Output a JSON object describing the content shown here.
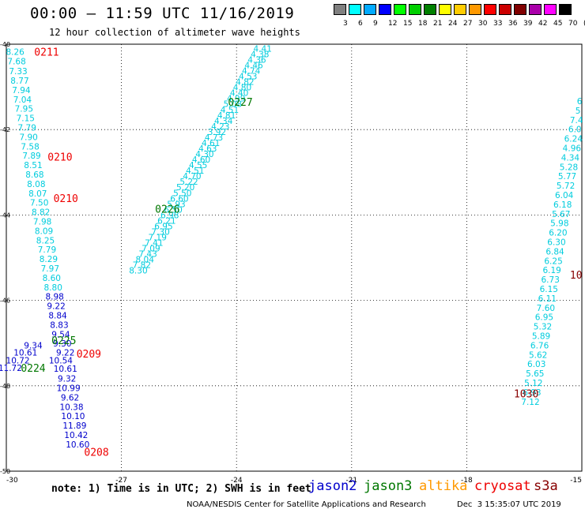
{
  "header": {
    "title": "00:00 – 11:59 UTC 11/16/2019",
    "subtitle": "12 hour collection of altimeter wave heights"
  },
  "color_scale": {
    "labels": [
      "3",
      "6",
      "9",
      "12",
      "15",
      "18",
      "21",
      "24",
      "27",
      "30",
      "33",
      "36",
      "39",
      "42",
      "45",
      "70",
      "(ft)"
    ],
    "colors": [
      "#808080",
      "#00ffff",
      "#00aaff",
      "#0000ff",
      "#00ff00",
      "#00d000",
      "#008000",
      "#ffff00",
      "#ffcc00",
      "#ff9900",
      "#ff0000",
      "#cc0000",
      "#800000",
      "#aa00aa",
      "#ff00ff",
      "#000000"
    ]
  },
  "footer": {
    "note": "note: 1) Time is in UTC; 2) SWH is in feet",
    "satellites": [
      {
        "name": "jason2",
        "color": "#0000cc"
      },
      {
        "name": "jason3",
        "color": "#007700"
      },
      {
        "name": "altika",
        "color": "#ff9900"
      },
      {
        "name": "cryosat",
        "color": "#ee0000"
      },
      {
        "name": "s3a",
        "color": "#880000"
      }
    ],
    "credit": "NOAA/NESDIS Center for Satellite Applications and Research",
    "date": "Dec  3 15:35:07 UTC 2019"
  },
  "chart_data": {
    "type": "scatter",
    "title": "00:00 – 11:59 UTC 11/16/2019",
    "subtitle": "12 hour collection of altimeter wave heights",
    "xlabel": "",
    "ylabel": "",
    "xlim": [
      -30,
      -15
    ],
    "ylim": [
      -50,
      -40
    ],
    "grid": true,
    "x_ticks": [
      "-30",
      "-27",
      "-24",
      "-21",
      "-18",
      "-15"
    ],
    "y_ticks": [
      "-40",
      "-42",
      "-44",
      "-46",
      "-48",
      "-50"
    ],
    "series": [
      {
        "name": "cryosat",
        "color": "#00ccdd",
        "points": [
          {
            "x": -29.77,
            "y": -40.18,
            "v": "8.26"
          },
          {
            "x": -29.73,
            "y": -40.4,
            "v": "7.68"
          },
          {
            "x": -29.69,
            "y": -40.63,
            "v": "7.33"
          },
          {
            "x": -29.65,
            "y": -40.85,
            "v": "8.77"
          },
          {
            "x": -29.61,
            "y": -41.07,
            "v": "7.94"
          },
          {
            "x": -29.58,
            "y": -41.29,
            "v": "7.04"
          },
          {
            "x": -29.54,
            "y": -41.51,
            "v": "7.95"
          },
          {
            "x": -29.5,
            "y": -41.73,
            "v": "7.15"
          },
          {
            "x": -29.46,
            "y": -41.95,
            "v": "7.79"
          },
          {
            "x": -29.42,
            "y": -42.17,
            "v": "7.90"
          },
          {
            "x": -29.38,
            "y": -42.39,
            "v": "7.58"
          },
          {
            "x": -29.34,
            "y": -42.61,
            "v": "7.89"
          },
          {
            "x": -29.3,
            "y": -42.83,
            "v": "8.51"
          },
          {
            "x": -29.26,
            "y": -43.05,
            "v": "8.68"
          },
          {
            "x": -29.22,
            "y": -43.27,
            "v": "8.08"
          },
          {
            "x": -29.18,
            "y": -43.49,
            "v": "8.07"
          },
          {
            "x": -29.14,
            "y": -43.71,
            "v": "7.50"
          },
          {
            "x": -29.1,
            "y": -43.93,
            "v": "8.82"
          },
          {
            "x": -29.06,
            "y": -44.15,
            "v": "7.98"
          },
          {
            "x": -29.02,
            "y": -44.37,
            "v": "8.09"
          },
          {
            "x": -28.98,
            "y": -44.59,
            "v": "8.25"
          },
          {
            "x": -28.94,
            "y": -44.81,
            "v": "7.79"
          },
          {
            "x": -28.9,
            "y": -45.03,
            "v": "8.29"
          },
          {
            "x": -28.86,
            "y": -45.25,
            "v": "7.97"
          },
          {
            "x": -28.82,
            "y": -45.47,
            "v": "8.60"
          },
          {
            "x": -28.78,
            "y": -45.69,
            "v": "8.80"
          }
        ]
      },
      {
        "name": "jason2",
        "color": "#0000cc",
        "points": [
          {
            "x": -28.74,
            "y": -45.91,
            "v": "8.98"
          },
          {
            "x": -28.7,
            "y": -46.13,
            "v": "9.22"
          },
          {
            "x": -28.66,
            "y": -46.35,
            "v": "8.84"
          },
          {
            "x": -28.62,
            "y": -46.57,
            "v": "8.83"
          },
          {
            "x": -28.58,
            "y": -46.79,
            "v": "9.54"
          },
          {
            "x": -28.54,
            "y": -47.01,
            "v": "9.30"
          },
          {
            "x": -28.46,
            "y": -47.22,
            "v": "9.22"
          },
          {
            "x": -28.58,
            "y": -47.4,
            "v": "10.54"
          },
          {
            "x": -28.46,
            "y": -47.6,
            "v": "10.61"
          },
          {
            "x": -28.42,
            "y": -47.83,
            "v": "9.32"
          },
          {
            "x": -28.38,
            "y": -48.05,
            "v": "10.99"
          },
          {
            "x": -28.34,
            "y": -48.27,
            "v": "9.62"
          },
          {
            "x": -28.3,
            "y": -48.49,
            "v": "10.38"
          },
          {
            "x": -28.26,
            "y": -48.71,
            "v": "10.10"
          },
          {
            "x": -28.22,
            "y": -48.93,
            "v": "11.89"
          },
          {
            "x": -28.18,
            "y": -49.15,
            "v": "10.42"
          },
          {
            "x": -28.14,
            "y": -49.37,
            "v": "10.60"
          },
          {
            "x": -29.3,
            "y": -47.05,
            "v": "9.34"
          },
          {
            "x": -29.5,
            "y": -47.22,
            "v": "10.61"
          },
          {
            "x": -29.7,
            "y": -47.4,
            "v": "10.72"
          },
          {
            "x": -29.9,
            "y": -47.58,
            "v": "11.72"
          }
        ]
      },
      {
        "name": "jason3",
        "color": "#00ccdd",
        "points": [
          {
            "x": -23.32,
            "y": -40.1,
            "v": "4.41"
          },
          {
            "x": -23.39,
            "y": -40.23,
            "v": "4.38"
          },
          {
            "x": -23.47,
            "y": -40.36,
            "v": "4.36"
          },
          {
            "x": -23.55,
            "y": -40.49,
            "v": "4.46"
          },
          {
            "x": -23.62,
            "y": -40.62,
            "v": "4.74"
          },
          {
            "x": -23.7,
            "y": -40.75,
            "v": "4.53"
          },
          {
            "x": -23.78,
            "y": -40.88,
            "v": "4.82"
          },
          {
            "x": -23.85,
            "y": -41.01,
            "v": "4.80"
          },
          {
            "x": -23.93,
            "y": -41.14,
            "v": "4.40"
          },
          {
            "x": -24.01,
            "y": -41.27,
            "v": "4.99"
          },
          {
            "x": -24.1,
            "y": -41.4,
            "v": "5.08"
          },
          {
            "x": -24.18,
            "y": -41.53,
            "v": "4.51"
          },
          {
            "x": -24.26,
            "y": -41.66,
            "v": "4.81"
          },
          {
            "x": -24.34,
            "y": -41.79,
            "v": "4.34"
          },
          {
            "x": -24.42,
            "y": -41.92,
            "v": "4.23"
          },
          {
            "x": -24.51,
            "y": -42.05,
            "v": "3.92"
          },
          {
            "x": -24.59,
            "y": -42.18,
            "v": "4.73"
          },
          {
            "x": -24.67,
            "y": -42.31,
            "v": "4.61"
          },
          {
            "x": -24.75,
            "y": -42.44,
            "v": "4.63"
          },
          {
            "x": -24.83,
            "y": -42.57,
            "v": "4.30"
          },
          {
            "x": -24.92,
            "y": -42.7,
            "v": "4.60"
          },
          {
            "x": -25.0,
            "y": -42.83,
            "v": "4.55"
          },
          {
            "x": -25.08,
            "y": -42.96,
            "v": "4.51"
          },
          {
            "x": -25.16,
            "y": -43.09,
            "v": "4.70"
          },
          {
            "x": -25.24,
            "y": -43.22,
            "v": "5.22"
          },
          {
            "x": -25.33,
            "y": -43.35,
            "v": "5.20"
          },
          {
            "x": -25.41,
            "y": -43.48,
            "v": "5.50"
          },
          {
            "x": -25.49,
            "y": -43.61,
            "v": "6.60"
          },
          {
            "x": -25.57,
            "y": -43.74,
            "v": "5.93"
          },
          {
            "x": -25.65,
            "y": -43.87,
            "v": "6.50"
          },
          {
            "x": -25.74,
            "y": -44.0,
            "v": "6.98"
          },
          {
            "x": -25.82,
            "y": -44.13,
            "v": "6.21"
          },
          {
            "x": -25.9,
            "y": -44.26,
            "v": "6.95"
          },
          {
            "x": -25.98,
            "y": -44.39,
            "v": "7.30"
          },
          {
            "x": -26.06,
            "y": -44.52,
            "v": "7.19"
          },
          {
            "x": -26.15,
            "y": -44.65,
            "v": "7.41"
          },
          {
            "x": -26.23,
            "y": -44.78,
            "v": "7.09"
          },
          {
            "x": -26.31,
            "y": -44.91,
            "v": "7.43"
          },
          {
            "x": -26.39,
            "y": -45.04,
            "v": "8.04"
          },
          {
            "x": -26.47,
            "y": -45.17,
            "v": "7.82"
          },
          {
            "x": -26.56,
            "y": -45.3,
            "v": "8.30"
          }
        ]
      },
      {
        "name": "s3a",
        "color": "#00ccdd",
        "points": [
          {
            "x": -15.06,
            "y": -41.33,
            "v": "6"
          },
          {
            "x": -15.1,
            "y": -41.55,
            "v": "5"
          },
          {
            "x": -15.14,
            "y": -41.77,
            "v": "7.4"
          },
          {
            "x": -15.18,
            "y": -41.99,
            "v": "6.0"
          },
          {
            "x": -15.22,
            "y": -42.21,
            "v": "6.24"
          },
          {
            "x": -15.26,
            "y": -42.43,
            "v": "4.96"
          },
          {
            "x": -15.3,
            "y": -42.65,
            "v": "4.34"
          },
          {
            "x": -15.34,
            "y": -42.87,
            "v": "5.28"
          },
          {
            "x": -15.38,
            "y": -43.09,
            "v": "5.77"
          },
          {
            "x": -15.42,
            "y": -43.31,
            "v": "5.72"
          },
          {
            "x": -15.46,
            "y": -43.53,
            "v": "6.04"
          },
          {
            "x": -15.5,
            "y": -43.75,
            "v": "6.18"
          },
          {
            "x": -15.54,
            "y": -43.97,
            "v": "5.67"
          },
          {
            "x": -15.58,
            "y": -44.19,
            "v": "5.98"
          },
          {
            "x": -15.62,
            "y": -44.41,
            "v": "6.20"
          },
          {
            "x": -15.66,
            "y": -44.63,
            "v": "6.30"
          },
          {
            "x": -15.7,
            "y": -44.85,
            "v": "6.84"
          },
          {
            "x": -15.74,
            "y": -45.07,
            "v": "6.25"
          },
          {
            "x": -15.78,
            "y": -45.29,
            "v": "6.19"
          },
          {
            "x": -15.82,
            "y": -45.51,
            "v": "6.73"
          },
          {
            "x": -15.86,
            "y": -45.73,
            "v": "6.15"
          },
          {
            "x": -15.9,
            "y": -45.95,
            "v": "6.11"
          },
          {
            "x": -15.94,
            "y": -46.17,
            "v": "7.60"
          },
          {
            "x": -15.98,
            "y": -46.39,
            "v": "6.95"
          },
          {
            "x": -16.02,
            "y": -46.61,
            "v": "5.32"
          },
          {
            "x": -16.06,
            "y": -46.83,
            "v": "5.89"
          },
          {
            "x": -16.1,
            "y": -47.05,
            "v": "6.76"
          },
          {
            "x": -16.14,
            "y": -47.27,
            "v": "5.62"
          },
          {
            "x": -16.18,
            "y": -47.49,
            "v": "6.03"
          },
          {
            "x": -16.22,
            "y": -47.71,
            "v": "5.65"
          },
          {
            "x": -16.26,
            "y": -47.93,
            "v": "5.12"
          },
          {
            "x": -16.3,
            "y": -48.15,
            "v": "6.93"
          },
          {
            "x": -16.34,
            "y": -48.37,
            "v": "7.12"
          }
        ]
      }
    ],
    "annotations": [
      {
        "x": -28.95,
        "y": -40.18,
        "text": "0211",
        "color": "#ee0000"
      },
      {
        "x": -28.6,
        "y": -42.63,
        "text": "0210",
        "color": "#ee0000"
      },
      {
        "x": -28.45,
        "y": -43.6,
        "text": "0210",
        "color": "#ee0000"
      },
      {
        "x": -23.9,
        "y": -41.35,
        "text": "0227",
        "color": "#007700"
      },
      {
        "x": -25.8,
        "y": -43.85,
        "text": "0226",
        "color": "#007700"
      },
      {
        "x": -28.5,
        "y": -46.93,
        "text": "0225",
        "color": "#007700"
      },
      {
        "x": -27.85,
        "y": -47.25,
        "text": "0209",
        "color": "#ee0000"
      },
      {
        "x": -29.3,
        "y": -47.58,
        "text": "0224",
        "color": "#007700"
      },
      {
        "x": -27.65,
        "y": -49.55,
        "text": "0208",
        "color": "#ee0000"
      },
      {
        "x": -16.45,
        "y": -48.18,
        "text": "1030",
        "color": "#880000"
      },
      {
        "x": -15.15,
        "y": -45.4,
        "text": "10",
        "color": "#880000"
      }
    ]
  }
}
